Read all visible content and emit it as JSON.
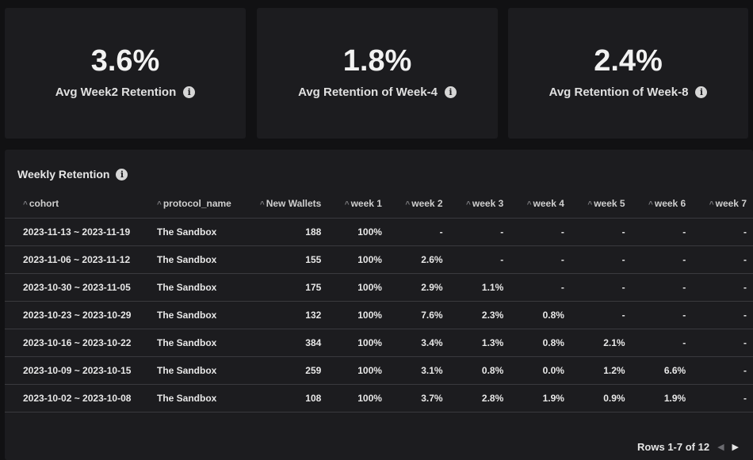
{
  "kpis": [
    {
      "value": "3.6%",
      "label": "Avg Week2 Retention"
    },
    {
      "value": "1.8%",
      "label": "Avg Retention of Week-4"
    },
    {
      "value": "2.4%",
      "label": "Avg Retention of Week-8"
    }
  ],
  "table": {
    "title": "Weekly Retention",
    "sort_icon": "caret-up-icon",
    "columns": [
      "cohort",
      "protocol_name",
      "New Wallets",
      "week 1",
      "week 2",
      "week 3",
      "week 4",
      "week 5",
      "week 6",
      "week 7"
    ],
    "rows": [
      [
        "2023-11-13 ~ 2023-11-19",
        "The Sandbox",
        "188",
        "100%",
        "-",
        "-",
        "-",
        "-",
        "-",
        "-"
      ],
      [
        "2023-11-06 ~ 2023-11-12",
        "The Sandbox",
        "155",
        "100%",
        "2.6%",
        "-",
        "-",
        "-",
        "-",
        "-"
      ],
      [
        "2023-10-30 ~ 2023-11-05",
        "The Sandbox",
        "175",
        "100%",
        "2.9%",
        "1.1%",
        "-",
        "-",
        "-",
        "-"
      ],
      [
        "2023-10-23 ~ 2023-10-29",
        "The Sandbox",
        "132",
        "100%",
        "7.6%",
        "2.3%",
        "0.8%",
        "-",
        "-",
        "-"
      ],
      [
        "2023-10-16 ~ 2023-10-22",
        "The Sandbox",
        "384",
        "100%",
        "3.4%",
        "1.3%",
        "0.8%",
        "2.1%",
        "-",
        "-"
      ],
      [
        "2023-10-09 ~ 2023-10-15",
        "The Sandbox",
        "259",
        "100%",
        "3.1%",
        "0.8%",
        "0.0%",
        "1.2%",
        "6.6%",
        "-"
      ],
      [
        "2023-10-02 ~ 2023-10-08",
        "The Sandbox",
        "108",
        "100%",
        "3.7%",
        "2.8%",
        "1.9%",
        "0.9%",
        "1.9%",
        "-"
      ]
    ]
  },
  "pagination": {
    "text": "Rows 1-7 of 12",
    "prev_icon": "chevron-left-icon",
    "next_icon": "chevron-right-icon"
  },
  "colors": {
    "background": "#111113",
    "card": "#1c1c1f",
    "divider": "#3a3a3e",
    "text": "#e6e6e6"
  }
}
